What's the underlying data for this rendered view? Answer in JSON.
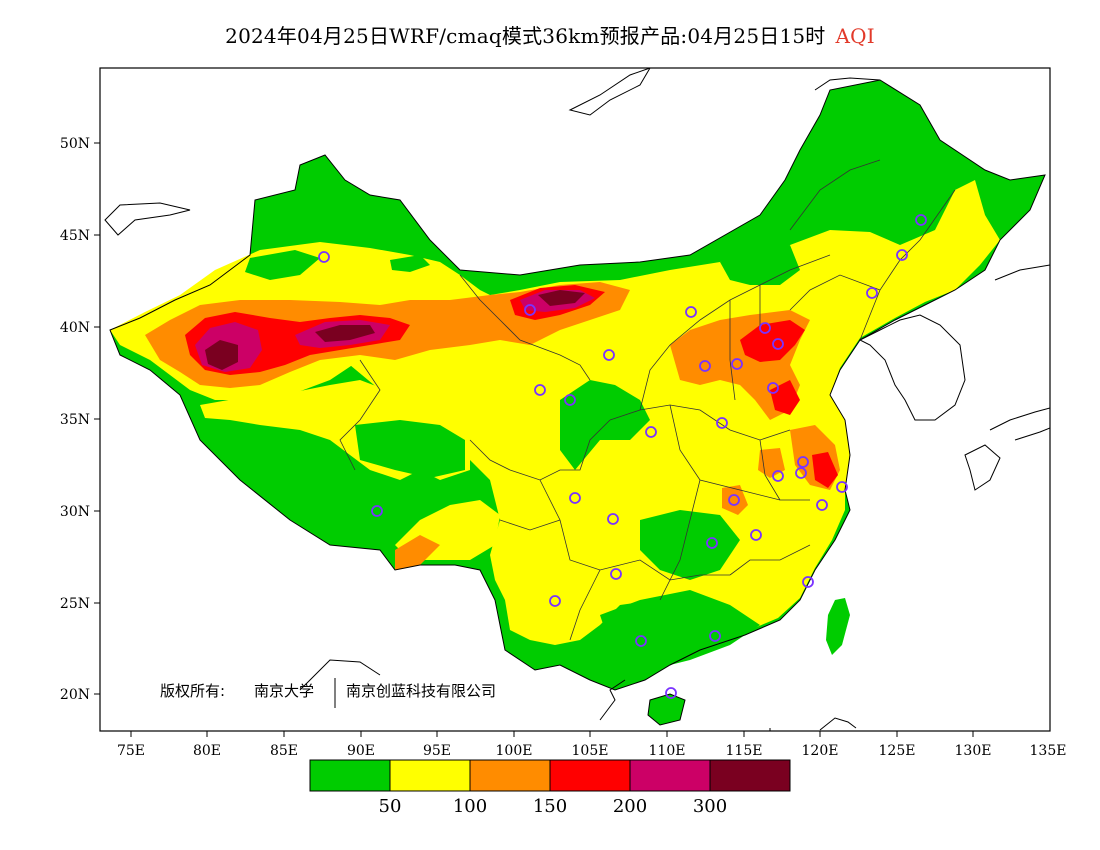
{
  "header": {
    "title": "2024年04月25日WRF/cmaq模式36km预报产品:04月25日15时",
    "variable": "AQI"
  },
  "axes": {
    "lon_labels": [
      "75E",
      "80E",
      "85E",
      "90E",
      "95E",
      "100E",
      "105E",
      "110E",
      "115E",
      "120E",
      "125E",
      "130E",
      "135E"
    ],
    "lat_labels": [
      "50N",
      "45N",
      "40N",
      "35N",
      "30N",
      "25N",
      "20N"
    ],
    "lon_range": [
      73,
      135
    ],
    "lat_range": [
      18,
      54
    ]
  },
  "copyright": {
    "prefix": "版权所有:",
    "org1": "南京大学",
    "org2": "南京创蓝科技有限公司"
  },
  "legend": {
    "colors": [
      "#00cc00",
      "#ffff00",
      "#ff8c00",
      "#ff0000",
      "#cc0066",
      "#7a0020"
    ],
    "labels": [
      "50",
      "100",
      "150",
      "200",
      "300"
    ]
  },
  "colors": {
    "green": "#00cc00",
    "yellow": "#ffff00",
    "orange": "#ff8c00",
    "red": "#ff0000",
    "purple": "#cc0066",
    "maroon": "#7a0020",
    "station_marker": "#7a33ff"
  },
  "stations_icon": "circle-marker-icon"
}
